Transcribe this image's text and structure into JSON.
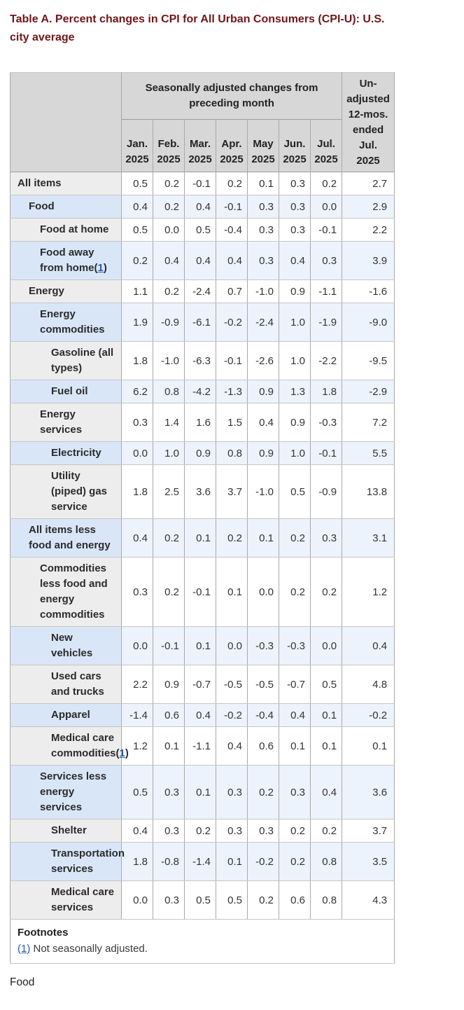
{
  "page": {
    "title_lines": [
      "Table A. Percent changes in CPI for All Urban Consumers (CPI-U): U.S.",
      "city average"
    ],
    "bottom_text": "Food"
  },
  "colors": {
    "title": "#721518",
    "link": "#2d5da9",
    "header_bg": "#d7d7d7",
    "gray_label_bg": "#ededed",
    "blue_label_bg": "#d9e6f8",
    "blue_data_bg": "#edf3fc"
  },
  "table": {
    "group_header": "Seasonally adjusted changes from preceding month",
    "unadjusted_header_lines": [
      "Un-",
      "adjusted",
      "12-mos.",
      "ended",
      "Jul.",
      "2025"
    ],
    "month_headers": [
      {
        "line1": "Jan.",
        "line2": "2025"
      },
      {
        "line1": "Feb.",
        "line2": "2025"
      },
      {
        "line1": "Mar.",
        "line2": "2025"
      },
      {
        "line1": "Apr.",
        "line2": "2025"
      },
      {
        "line1": "May",
        "line2": "2025"
      },
      {
        "line1": "Jun.",
        "line2": "2025"
      },
      {
        "line1": "Jul.",
        "line2": "2025"
      }
    ],
    "rows": [
      {
        "label": "All items",
        "indent": 0,
        "footnote": null,
        "shade": "gray",
        "values": [
          "0.5",
          "0.2",
          "-0.1",
          "0.2",
          "0.1",
          "0.3",
          "0.2"
        ],
        "yoy": "2.7"
      },
      {
        "label": "Food",
        "indent": 1,
        "footnote": null,
        "shade": "blue",
        "values": [
          "0.4",
          "0.2",
          "0.4",
          "-0.1",
          "0.3",
          "0.3",
          "0.0"
        ],
        "yoy": "2.9"
      },
      {
        "label": "Food at home",
        "indent": 2,
        "footnote": null,
        "shade": "gray",
        "values": [
          "0.5",
          "0.0",
          "0.5",
          "-0.4",
          "0.3",
          "0.3",
          "-0.1"
        ],
        "yoy": "2.2"
      },
      {
        "label": "Food away from home",
        "indent": 2,
        "footnote": "1",
        "shade": "blue",
        "values": [
          "0.2",
          "0.4",
          "0.4",
          "0.4",
          "0.3",
          "0.4",
          "0.3"
        ],
        "yoy": "3.9"
      },
      {
        "label": "Energy",
        "indent": 1,
        "footnote": null,
        "shade": "gray",
        "values": [
          "1.1",
          "0.2",
          "-2.4",
          "0.7",
          "-1.0",
          "0.9",
          "-1.1"
        ],
        "yoy": "-1.6"
      },
      {
        "label": "Energy commodities",
        "indent": 2,
        "footnote": null,
        "shade": "blue",
        "values": [
          "1.9",
          "-0.9",
          "-6.1",
          "-0.2",
          "-2.4",
          "1.0",
          "-1.9"
        ],
        "yoy": "-9.0"
      },
      {
        "label": "Gasoline (all types)",
        "indent": 3,
        "footnote": null,
        "shade": "gray",
        "values": [
          "1.8",
          "-1.0",
          "-6.3",
          "-0.1",
          "-2.6",
          "1.0",
          "-2.2"
        ],
        "yoy": "-9.5"
      },
      {
        "label": "Fuel oil",
        "indent": 3,
        "footnote": null,
        "shade": "blue",
        "values": [
          "6.2",
          "0.8",
          "-4.2",
          "-1.3",
          "0.9",
          "1.3",
          "1.8"
        ],
        "yoy": "-2.9"
      },
      {
        "label": "Energy services",
        "indent": 2,
        "footnote": null,
        "shade": "gray",
        "values": [
          "0.3",
          "1.4",
          "1.6",
          "1.5",
          "0.4",
          "0.9",
          "-0.3"
        ],
        "yoy": "7.2"
      },
      {
        "label": "Electricity",
        "indent": 3,
        "footnote": null,
        "shade": "blue",
        "values": [
          "0.0",
          "1.0",
          "0.9",
          "0.8",
          "0.9",
          "1.0",
          "-0.1"
        ],
        "yoy": "5.5"
      },
      {
        "label": "Utility (piped) gas service",
        "indent": 3,
        "footnote": null,
        "shade": "gray",
        "values": [
          "1.8",
          "2.5",
          "3.6",
          "3.7",
          "-1.0",
          "0.5",
          "-0.9"
        ],
        "yoy": "13.8"
      },
      {
        "label": "All items less food and energy",
        "indent": 1,
        "footnote": null,
        "shade": "blue",
        "values": [
          "0.4",
          "0.2",
          "0.1",
          "0.2",
          "0.1",
          "0.2",
          "0.3"
        ],
        "yoy": "3.1"
      },
      {
        "label": "Commodities less food and energy commodities",
        "indent": 2,
        "footnote": null,
        "shade": "gray",
        "values": [
          "0.3",
          "0.2",
          "-0.1",
          "0.1",
          "0.0",
          "0.2",
          "0.2"
        ],
        "yoy": "1.2"
      },
      {
        "label": "New vehicles",
        "indent": 3,
        "footnote": null,
        "shade": "blue",
        "values": [
          "0.0",
          "-0.1",
          "0.1",
          "0.0",
          "-0.3",
          "-0.3",
          "0.0"
        ],
        "yoy": "0.4"
      },
      {
        "label": "Used cars and trucks",
        "indent": 3,
        "footnote": null,
        "shade": "gray",
        "values": [
          "2.2",
          "0.9",
          "-0.7",
          "-0.5",
          "-0.5",
          "-0.7",
          "0.5"
        ],
        "yoy": "4.8"
      },
      {
        "label": "Apparel",
        "indent": 3,
        "footnote": null,
        "shade": "blue",
        "values": [
          "-1.4",
          "0.6",
          "0.4",
          "-0.2",
          "-0.4",
          "0.4",
          "0.1"
        ],
        "yoy": "-0.2"
      },
      {
        "label": "Medical care commodities",
        "indent": 3,
        "footnote": "1",
        "shade": "gray",
        "values": [
          "1.2",
          "0.1",
          "-1.1",
          "0.4",
          "0.6",
          "0.1",
          "0.1"
        ],
        "yoy": "0.1"
      },
      {
        "label": "Services less energy services",
        "indent": 2,
        "footnote": null,
        "shade": "blue",
        "values": [
          "0.5",
          "0.3",
          "0.1",
          "0.3",
          "0.2",
          "0.3",
          "0.4"
        ],
        "yoy": "3.6"
      },
      {
        "label": "Shelter",
        "indent": 3,
        "footnote": null,
        "shade": "gray",
        "values": [
          "0.4",
          "0.3",
          "0.2",
          "0.3",
          "0.3",
          "0.2",
          "0.2"
        ],
        "yoy": "3.7"
      },
      {
        "label": "Transportation services",
        "indent": 3,
        "footnote": null,
        "shade": "blue",
        "values": [
          "1.8",
          "-0.8",
          "-1.4",
          "0.1",
          "-0.2",
          "0.2",
          "0.8"
        ],
        "yoy": "3.5"
      },
      {
        "label": "Medical care services",
        "indent": 3,
        "footnote": null,
        "shade": "gray",
        "values": [
          "0.0",
          "0.3",
          "0.5",
          "0.5",
          "0.2",
          "0.6",
          "0.8"
        ],
        "yoy": "4.3"
      }
    ],
    "footnotes": {
      "heading": "Footnotes",
      "marker": "(1)",
      "text": " Not seasonally adjusted."
    }
  }
}
